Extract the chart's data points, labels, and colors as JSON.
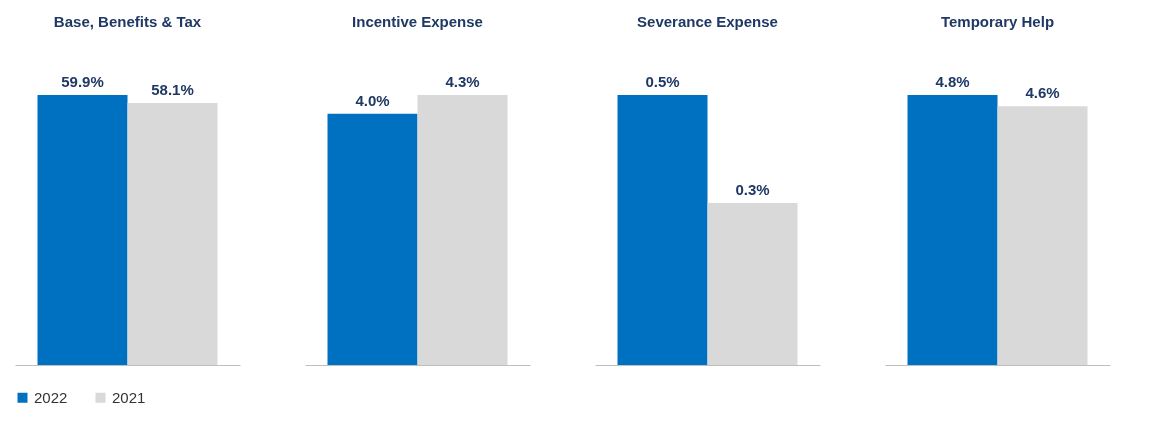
{
  "chart_data": [
    {
      "type": "bar",
      "title": "Base, Benefits & Tax",
      "categories": [
        null
      ],
      "legend": "bottom",
      "series": [
        {
          "name": "2022",
          "color": "#0070c0",
          "values": [
            59.9
          ],
          "value_labels": [
            "59.9%"
          ]
        },
        {
          "name": "2021",
          "color": "#d9d9d9",
          "values": [
            58.1
          ],
          "value_labels": [
            "58.1%"
          ]
        }
      ]
    },
    {
      "type": "bar",
      "title": "Incentive Expense",
      "categories": [
        null
      ],
      "legend": "bottom",
      "series": [
        {
          "name": "2022",
          "color": "#0070c0",
          "values": [
            4.0
          ],
          "value_labels": [
            "4.0%"
          ]
        },
        {
          "name": "2021",
          "color": "#d9d9d9",
          "values": [
            4.3
          ],
          "value_labels": [
            "4.3%"
          ]
        }
      ]
    },
    {
      "type": "bar",
      "title": "Severance Expense",
      "categories": [
        null
      ],
      "legend": "bottom",
      "series": [
        {
          "name": "2022",
          "color": "#0070c0",
          "values": [
            0.5
          ],
          "value_labels": [
            "0.5%"
          ]
        },
        {
          "name": "2021",
          "color": "#d9d9d9",
          "values": [
            0.3
          ],
          "value_labels": [
            "0.3%"
          ]
        }
      ]
    },
    {
      "type": "bar",
      "title": "Temporary Help",
      "categories": [
        null
      ],
      "legend": "bottom",
      "series": [
        {
          "name": "2022",
          "color": "#0070c0",
          "values": [
            4.8
          ],
          "value_labels": [
            "4.8%"
          ]
        },
        {
          "name": "2021",
          "color": "#d9d9d9",
          "values": [
            4.6
          ],
          "value_labels": [
            "4.6%"
          ]
        }
      ]
    }
  ]
}
